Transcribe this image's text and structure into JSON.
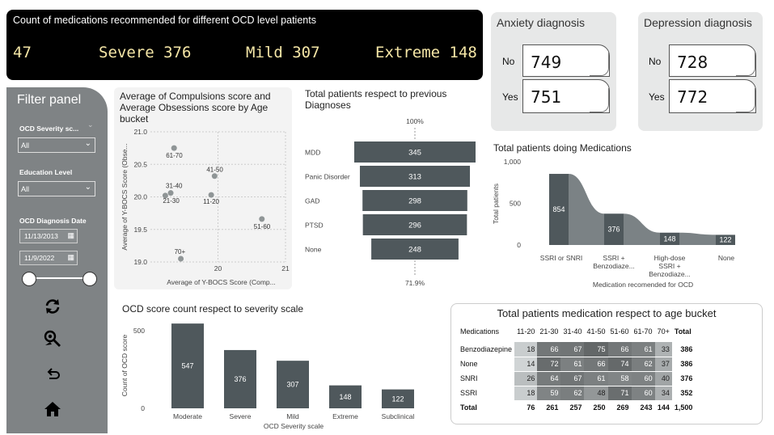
{
  "kpi": {
    "title": "Count of medications recommended for different OCD level patients",
    "values": [
      "47",
      "Severe 376",
      "Mild 307",
      "Extreme 148"
    ]
  },
  "anxiety": {
    "title": "Anxiety diagnosis",
    "no_label": "No",
    "no_value": "749",
    "yes_label": "Yes",
    "yes_value": "751"
  },
  "depression": {
    "title": "Depression diagnosis",
    "no_label": "No",
    "no_value": "728",
    "yes_label": "Yes",
    "yes_value": "772"
  },
  "filter": {
    "title": "Filter panel",
    "severity_label": "OCD Severity sc...",
    "severity_value": "All",
    "education_label": "Education Level",
    "education_value": "All",
    "date_label": "OCD Diagnosis Date",
    "date_start": "11/13/2013",
    "date_end": "11/9/2022",
    "icons": [
      "refresh-icon",
      "search-filter-icon",
      "back-icon",
      "home-icon"
    ]
  },
  "colors": {
    "dark_bar": "#4f585c",
    "mid_area": "#7b8285",
    "light_area": "#a8adae",
    "kpi_text": "#f5e6a6"
  },
  "chart_data": [
    {
      "type": "scatter",
      "title": "Average of Compulsions score and Average Obsessions score by Age bucket",
      "xlabel": "Average of Y-BOCS Score (Comp...",
      "ylabel": "Average of Y-BOCS Score (Obse...",
      "xlim": [
        19,
        21
      ],
      "ylim": [
        19.0,
        21.0
      ],
      "xticks": [
        "20",
        "21"
      ],
      "yticks": [
        "19.0",
        "19.5",
        "20.0",
        "20.5",
        "21.0"
      ],
      "points": [
        {
          "label": "61-70",
          "x": 19.35,
          "y": 20.75
        },
        {
          "label": "41-50",
          "x": 19.95,
          "y": 20.32
        },
        {
          "label": "31-40",
          "x": 19.3,
          "y": 20.06
        },
        {
          "label": "21-30",
          "x": 19.22,
          "y": 20.02
        },
        {
          "label": "11-20",
          "x": 19.9,
          "y": 20.03
        },
        {
          "label": "51-60",
          "x": 20.65,
          "y": 19.66
        },
        {
          "label": "70+",
          "x": 19.45,
          "y": 19.05
        }
      ]
    },
    {
      "type": "bar",
      "subtype": "funnel",
      "title": "Total patients respect to previous Diagnoses",
      "top_label": "100%",
      "bottom_label": "71.9%",
      "categories": [
        "MDD",
        "Panic Disorder",
        "GAD",
        "PTSD",
        "None"
      ],
      "values": [
        345,
        313,
        298,
        296,
        248
      ]
    },
    {
      "type": "area",
      "title": "Total patients doing Medications",
      "xlabel": "Medication recomended for OCD",
      "ylabel": "Total patients",
      "ylim": [
        0,
        1000
      ],
      "yticks": [
        "0",
        "500",
        "1,000"
      ],
      "categories": [
        "SSRI or SNRI",
        "SSRI + Benzodiaze...",
        "High-dose SSRI + Benzodiaze...",
        "None"
      ],
      "values": [
        854,
        376,
        148,
        122
      ]
    },
    {
      "type": "bar",
      "title": "OCD score count respect to severity scale",
      "xlabel": "OCD Severity scale",
      "ylabel": "Count of OCD score",
      "ylim": [
        0,
        600
      ],
      "yticks": [
        "0",
        "500"
      ],
      "categories": [
        "Moderate",
        "Severe",
        "Mild",
        "Extreme",
        "Subclinical"
      ],
      "values": [
        547,
        376,
        307,
        148,
        122
      ]
    },
    {
      "type": "table",
      "title": "Total patients medication respect to age bucket",
      "columns": [
        "Medications",
        "11-20",
        "21-30",
        "31-40",
        "41-50",
        "51-60",
        "61-70",
        "70+",
        "Total"
      ],
      "rows": [
        {
          "name": "Benzodiazepine",
          "values": [
            18,
            66,
            67,
            75,
            66,
            61,
            33
          ],
          "total": "386"
        },
        {
          "name": "None",
          "values": [
            14,
            72,
            61,
            66,
            74,
            62,
            37
          ],
          "total": "386"
        },
        {
          "name": "SNRI",
          "values": [
            26,
            64,
            67,
            61,
            58,
            60,
            40
          ],
          "total": "376"
        },
        {
          "name": "SSRI",
          "values": [
            18,
            59,
            62,
            48,
            71,
            60,
            34
          ],
          "total": "352"
        }
      ],
      "total_row": {
        "name": "Total",
        "values": [
          "76",
          "261",
          "257",
          "250",
          "269",
          "243",
          "144"
        ],
        "total": "1,500"
      }
    }
  ]
}
